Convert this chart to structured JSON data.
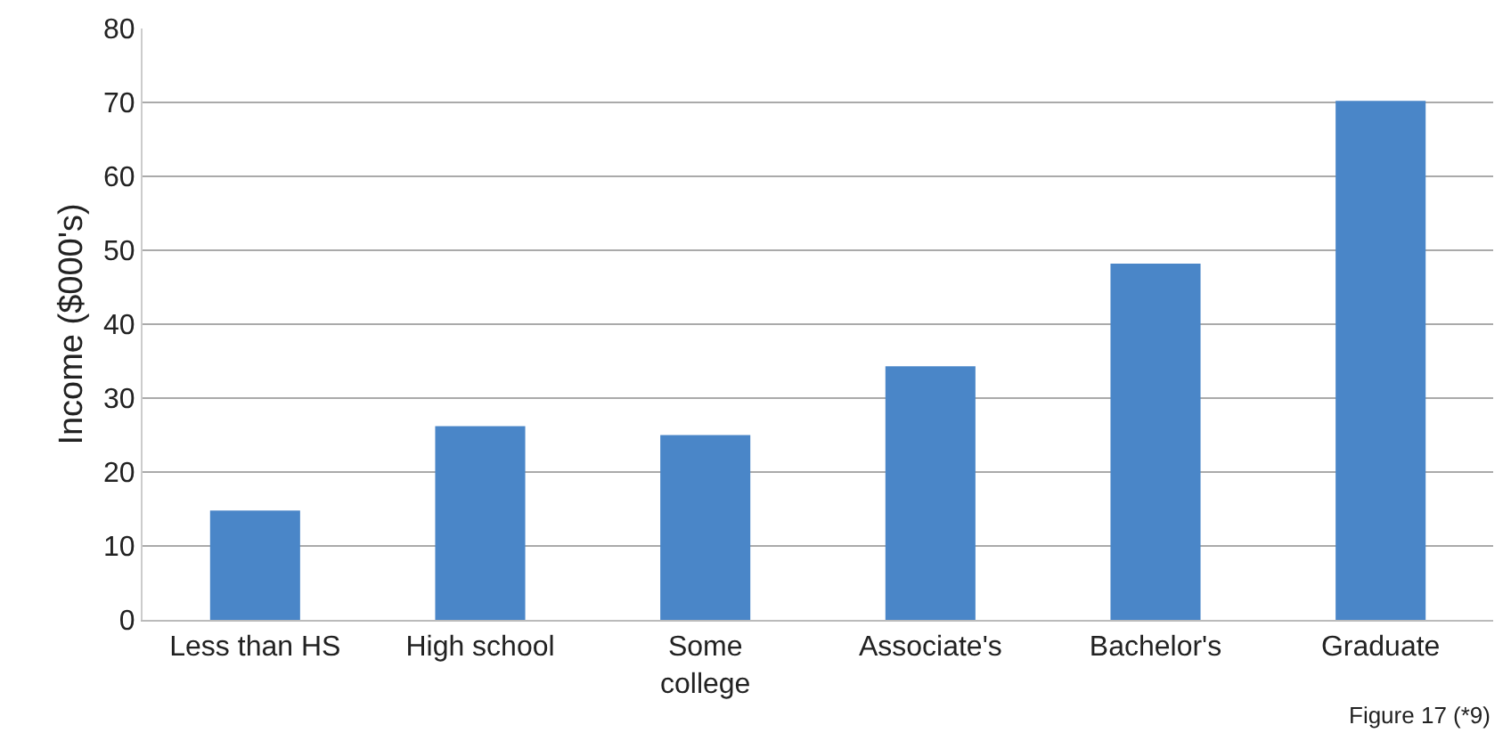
{
  "chart_data": {
    "type": "bar",
    "ylabel": "Income ($000's)",
    "categories": [
      "Less than HS",
      "High school",
      "Some college",
      "Associate's",
      "Bachelor's",
      "Graduate"
    ],
    "values": [
      14.8,
      26.2,
      25,
      34.3,
      48.2,
      70.2
    ],
    "color": "#4a86c8",
    "ylim": [
      0,
      80
    ],
    "yticks": [
      0,
      10,
      20,
      30,
      40,
      50,
      60,
      70,
      80
    ],
    "grid": "y",
    "annotations": [
      "Figure 17 (*9)"
    ]
  }
}
